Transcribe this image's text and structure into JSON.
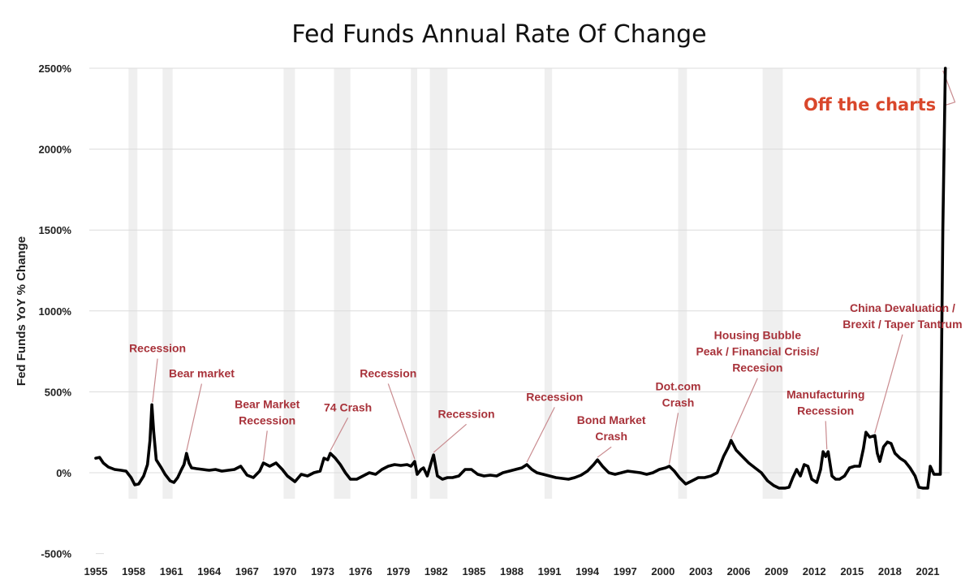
{
  "chart_data": {
    "type": "line",
    "title": "Fed Funds Annual Rate Of Change",
    "xlabel": "",
    "ylabel": "Fed Funds YoY % Change",
    "xlim": [
      1955,
      2022.5
    ],
    "ylim": [
      -500,
      2500
    ],
    "x_ticks": [
      1955,
      1958,
      1961,
      1964,
      1967,
      1970,
      1973,
      1976,
      1979,
      1982,
      1985,
      1988,
      1991,
      1994,
      1997,
      2000,
      2003,
      2006,
      2009,
      2012,
      2015,
      2018,
      2021
    ],
    "y_ticks": [
      -500,
      0,
      500,
      1000,
      1500,
      2000,
      2500
    ],
    "y_tick_labels": [
      "-500%",
      "0%",
      "500%",
      "1000%",
      "1500%",
      "2000%",
      "2500%"
    ],
    "grid": "horizontal",
    "line_color": "#000000",
    "recession_band_color": "#efefef",
    "annotation_color": "#a8323a",
    "highlight_color": "#d9472b",
    "recessions": [
      [
        1957.6,
        1958.3
      ],
      [
        1960.3,
        1961.1
      ],
      [
        1969.9,
        1970.8
      ],
      [
        1973.9,
        1975.2
      ],
      [
        1980.0,
        1980.5
      ],
      [
        1981.5,
        1982.9
      ],
      [
        1990.6,
        1991.2
      ],
      [
        2001.2,
        2001.9
      ],
      [
        2007.9,
        2009.5
      ],
      [
        2020.1,
        2020.4
      ]
    ],
    "series": [
      {
        "name": "Fed Funds YoY % Change",
        "points": [
          [
            1955.0,
            90
          ],
          [
            1955.3,
            95
          ],
          [
            1955.6,
            60
          ],
          [
            1956.0,
            35
          ],
          [
            1956.5,
            20
          ],
          [
            1957.0,
            15
          ],
          [
            1957.4,
            10
          ],
          [
            1957.8,
            -30
          ],
          [
            1958.1,
            -75
          ],
          [
            1958.4,
            -70
          ],
          [
            1958.8,
            -20
          ],
          [
            1959.1,
            50
          ],
          [
            1959.3,
            200
          ],
          [
            1959.45,
            420
          ],
          [
            1959.6,
            250
          ],
          [
            1959.8,
            80
          ],
          [
            1960.2,
            30
          ],
          [
            1960.5,
            -10
          ],
          [
            1960.9,
            -50
          ],
          [
            1961.2,
            -60
          ],
          [
            1961.5,
            -30
          ],
          [
            1961.8,
            20
          ],
          [
            1962.0,
            50
          ],
          [
            1962.2,
            120
          ],
          [
            1962.4,
            60
          ],
          [
            1962.6,
            30
          ],
          [
            1963.0,
            25
          ],
          [
            1963.5,
            20
          ],
          [
            1964.0,
            15
          ],
          [
            1964.5,
            20
          ],
          [
            1965.0,
            10
          ],
          [
            1965.5,
            15
          ],
          [
            1966.0,
            20
          ],
          [
            1966.5,
            40
          ],
          [
            1967.0,
            -15
          ],
          [
            1967.5,
            -30
          ],
          [
            1968.0,
            10
          ],
          [
            1968.3,
            60
          ],
          [
            1968.8,
            40
          ],
          [
            1969.3,
            60
          ],
          [
            1969.8,
            20
          ],
          [
            1970.2,
            -20
          ],
          [
            1970.8,
            -55
          ],
          [
            1971.3,
            -10
          ],
          [
            1971.8,
            -20
          ],
          [
            1972.3,
            0
          ],
          [
            1972.8,
            10
          ],
          [
            1973.1,
            90
          ],
          [
            1973.4,
            80
          ],
          [
            1973.6,
            120
          ],
          [
            1974.0,
            90
          ],
          [
            1974.4,
            50
          ],
          [
            1974.8,
            0
          ],
          [
            1975.2,
            -40
          ],
          [
            1975.7,
            -40
          ],
          [
            1976.2,
            -20
          ],
          [
            1976.7,
            0
          ],
          [
            1977.2,
            -10
          ],
          [
            1977.7,
            20
          ],
          [
            1978.2,
            40
          ],
          [
            1978.7,
            50
          ],
          [
            1979.2,
            45
          ],
          [
            1979.7,
            50
          ],
          [
            1980.0,
            40
          ],
          [
            1980.3,
            70
          ],
          [
            1980.5,
            -10
          ],
          [
            1980.8,
            20
          ],
          [
            1981.0,
            30
          ],
          [
            1981.3,
            -20
          ],
          [
            1981.6,
            60
          ],
          [
            1981.8,
            110
          ],
          [
            1982.1,
            -20
          ],
          [
            1982.5,
            -40
          ],
          [
            1982.9,
            -30
          ],
          [
            1983.3,
            -30
          ],
          [
            1983.8,
            -20
          ],
          [
            1984.3,
            20
          ],
          [
            1984.8,
            20
          ],
          [
            1985.3,
            -10
          ],
          [
            1985.8,
            -20
          ],
          [
            1986.3,
            -15
          ],
          [
            1986.8,
            -20
          ],
          [
            1987.3,
            0
          ],
          [
            1987.8,
            10
          ],
          [
            1988.3,
            20
          ],
          [
            1988.8,
            30
          ],
          [
            1989.2,
            50
          ],
          [
            1989.6,
            20
          ],
          [
            1990.0,
            0
          ],
          [
            1990.5,
            -10
          ],
          [
            1991.0,
            -20
          ],
          [
            1991.5,
            -30
          ],
          [
            1992.0,
            -35
          ],
          [
            1992.5,
            -40
          ],
          [
            1993.0,
            -30
          ],
          [
            1993.5,
            -15
          ],
          [
            1994.0,
            10
          ],
          [
            1994.5,
            50
          ],
          [
            1994.8,
            80
          ],
          [
            1995.2,
            40
          ],
          [
            1995.7,
            0
          ],
          [
            1996.2,
            -10
          ],
          [
            1996.7,
            0
          ],
          [
            1997.2,
            10
          ],
          [
            1997.7,
            5
          ],
          [
            1998.2,
            0
          ],
          [
            1998.7,
            -10
          ],
          [
            1999.2,
            0
          ],
          [
            1999.7,
            20
          ],
          [
            2000.2,
            30
          ],
          [
            2000.5,
            40
          ],
          [
            2000.9,
            10
          ],
          [
            2001.3,
            -30
          ],
          [
            2001.8,
            -70
          ],
          [
            2002.3,
            -50
          ],
          [
            2002.8,
            -30
          ],
          [
            2003.3,
            -30
          ],
          [
            2003.8,
            -20
          ],
          [
            2004.3,
            0
          ],
          [
            2004.8,
            100
          ],
          [
            2005.2,
            160
          ],
          [
            2005.4,
            200
          ],
          [
            2005.8,
            140
          ],
          [
            2006.3,
            100
          ],
          [
            2006.8,
            60
          ],
          [
            2007.3,
            30
          ],
          [
            2007.8,
            0
          ],
          [
            2008.3,
            -50
          ],
          [
            2008.8,
            -80
          ],
          [
            2009.2,
            -95
          ],
          [
            2009.7,
            -95
          ],
          [
            2010.0,
            -90
          ],
          [
            2010.3,
            -30
          ],
          [
            2010.6,
            20
          ],
          [
            2010.9,
            -20
          ],
          [
            2011.2,
            50
          ],
          [
            2011.5,
            40
          ],
          [
            2011.8,
            -40
          ],
          [
            2012.2,
            -60
          ],
          [
            2012.5,
            20
          ],
          [
            2012.7,
            130
          ],
          [
            2012.9,
            100
          ],
          [
            2013.1,
            130
          ],
          [
            2013.4,
            -20
          ],
          [
            2013.7,
            -40
          ],
          [
            2014.0,
            -40
          ],
          [
            2014.4,
            -20
          ],
          [
            2014.8,
            30
          ],
          [
            2015.2,
            40
          ],
          [
            2015.6,
            40
          ],
          [
            2015.9,
            150
          ],
          [
            2016.1,
            250
          ],
          [
            2016.4,
            220
          ],
          [
            2016.8,
            230
          ],
          [
            2017.0,
            120
          ],
          [
            2017.2,
            70
          ],
          [
            2017.5,
            160
          ],
          [
            2017.8,
            190
          ],
          [
            2018.1,
            180
          ],
          [
            2018.4,
            120
          ],
          [
            2018.8,
            90
          ],
          [
            2019.2,
            70
          ],
          [
            2019.6,
            30
          ],
          [
            2020.0,
            -20
          ],
          [
            2020.3,
            -90
          ],
          [
            2020.6,
            -95
          ],
          [
            2021.0,
            -95
          ],
          [
            2021.2,
            40
          ],
          [
            2021.5,
            -10
          ],
          [
            2021.8,
            -10
          ],
          [
            2022.0,
            -10
          ],
          [
            2022.2,
            1500
          ],
          [
            2022.4,
            2500
          ]
        ]
      }
    ],
    "annotations": [
      {
        "label": "Recession",
        "lines": [
          "Recession"
        ],
        "x": 1959.5,
        "y": 420,
        "label_pos": [
          1959.9,
          745
        ]
      },
      {
        "label": "Bear market",
        "lines": [
          "Bear market"
        ],
        "x": 1962.2,
        "y": 120,
        "label_pos": [
          1963.4,
          590
        ]
      },
      {
        "label": "Bear Market Recession",
        "lines": [
          "Bear Market",
          "Recession"
        ],
        "x": 1968.3,
        "y": 60,
        "label_pos": [
          1968.6,
          400
        ]
      },
      {
        "label": "74 Crash",
        "lines": [
          "74 Crash"
        ],
        "x": 1973.6,
        "y": 120,
        "label_pos": [
          1975.0,
          380
        ]
      },
      {
        "label": "Recession",
        "lines": [
          "Recession"
        ],
        "x": 1980.3,
        "y": 70,
        "label_pos": [
          1978.2,
          590
        ]
      },
      {
        "label": "Recession",
        "lines": [
          "Recession"
        ],
        "x": 1981.8,
        "y": 110,
        "label_pos": [
          1984.4,
          340
        ]
      },
      {
        "label": "Recession",
        "lines": [
          "Recession"
        ],
        "x": 1989.2,
        "y": 50,
        "label_pos": [
          1991.4,
          445
        ]
      },
      {
        "label": "Bond Market Crash",
        "lines": [
          "Bond Market",
          "Crash"
        ],
        "x": 1994.8,
        "y": 80,
        "label_pos": [
          1995.9,
          300
        ]
      },
      {
        "label": "Dot.com Crash",
        "lines": [
          "Dot.com",
          "Crash"
        ],
        "x": 2000.5,
        "y": 40,
        "label_pos": [
          2001.2,
          510
        ]
      },
      {
        "label": "Housing Bubble Peak / Financial Crisis/ Recesion",
        "lines": [
          "Housing Bubble",
          "Peak / Financial Crisis/",
          "Recesion"
        ],
        "x": 2005.4,
        "y": 200,
        "label_pos": [
          2007.5,
          825
        ]
      },
      {
        "label": "Manufacturing Recession",
        "lines": [
          "Manufacturing",
          "Recession"
        ],
        "x": 2013.0,
        "y": 130,
        "label_pos": [
          2012.9,
          460
        ]
      },
      {
        "label": "China Devaluation / Brexit / Taper Tantrum",
        "lines": [
          "China Devaluation /",
          "Brexit / Taper Tantrum"
        ],
        "x": 2016.8,
        "y": 230,
        "label_pos": [
          2019.0,
          995
        ]
      }
    ],
    "callout": {
      "label": "Off the charts",
      "x": 2022.4,
      "y": 2500,
      "label_pos": [
        2016.4,
        2240
      ]
    }
  }
}
